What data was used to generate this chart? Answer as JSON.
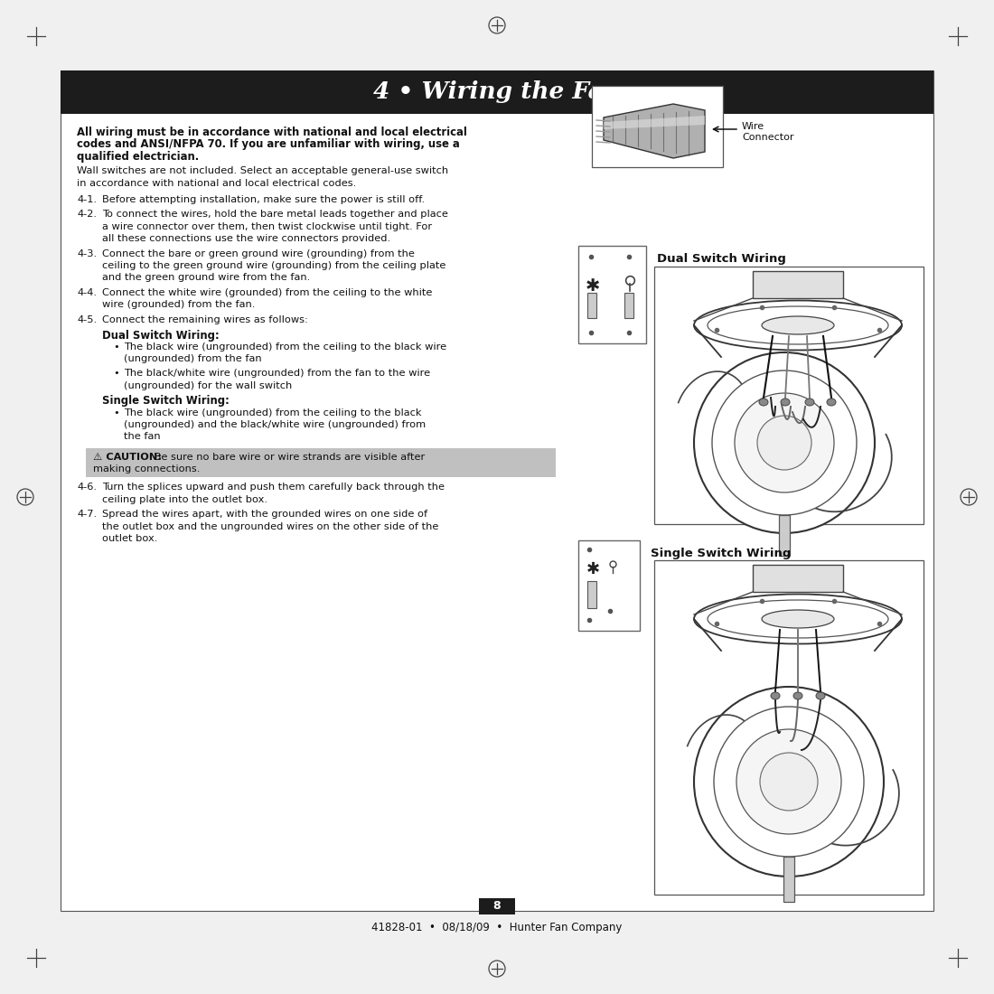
{
  "title": "4 • Wiring the Fan",
  "title_bg": "#1c1c1c",
  "title_color": "#ffffff",
  "page_bg": "#f0f0f0",
  "content_bg": "#ffffff",
  "body_text_color": "#111111",
  "footer_text": "41828-01  •  08/18/09  •  Hunter Fan Company",
  "page_number": "8",
  "label_wire_connector": "Wire\nConnector",
  "label_dual_switch": "Dual Switch Wiring",
  "label_single_switch": "Single Switch Wiring",
  "caution_bg": "#c0c0c0"
}
